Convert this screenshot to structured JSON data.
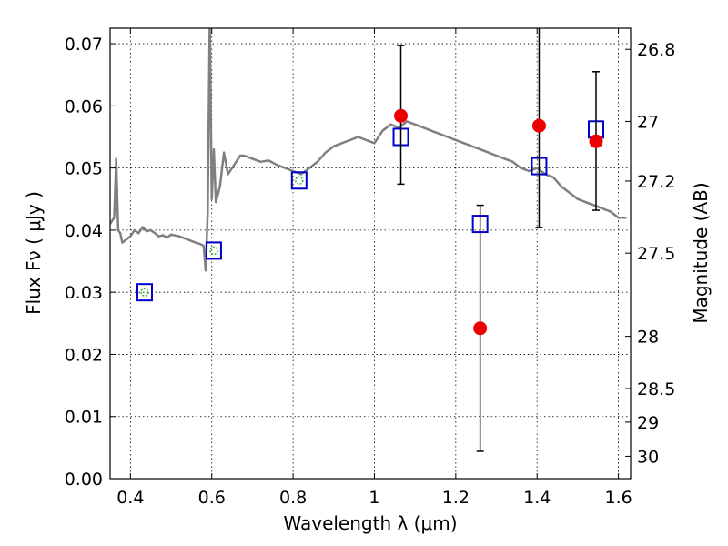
{
  "chart_data": {
    "type": "scatter",
    "title": "",
    "xlabel": "Wavelength  λ (μm)",
    "ylabel": "Flux  Fν  ( μJy )",
    "y2label": "Magnitude (AB)",
    "xlim": [
      0.35,
      1.63
    ],
    "ylim": [
      0.0,
      0.0725
    ],
    "grid": true,
    "x_ticks": [
      0.4,
      0.6,
      0.8,
      1.0,
      1.2,
      1.4,
      1.6
    ],
    "x_tick_labels": [
      "0.4",
      "0.6",
      "0.8",
      "1",
      "1.2",
      "1.4",
      "1.6"
    ],
    "y_ticks": [
      0.0,
      0.01,
      0.02,
      0.03,
      0.04,
      0.05,
      0.06,
      0.07
    ],
    "y_tick_labels": [
      "0.00",
      "0.01",
      "0.02",
      "0.03",
      "0.04",
      "0.05",
      "0.06",
      "0.07"
    ],
    "y2_ticks": [
      {
        "flux": 0.0691,
        "label": "26.8"
      },
      {
        "flux": 0.0575,
        "label": "27"
      },
      {
        "flux": 0.0479,
        "label": "27.2"
      },
      {
        "flux": 0.0363,
        "label": "27.5"
      },
      {
        "flux": 0.0229,
        "label": "28"
      },
      {
        "flux": 0.0145,
        "label": "28.5"
      },
      {
        "flux": 0.0091,
        "label": "29"
      },
      {
        "flux": 0.0036,
        "label": "30"
      }
    ],
    "series": [
      {
        "kind": "line",
        "color": "#808080",
        "x": [
          0.35,
          0.36,
          0.365,
          0.37,
          0.375,
          0.38,
          0.39,
          0.4,
          0.41,
          0.42,
          0.43,
          0.44,
          0.45,
          0.46,
          0.47,
          0.48,
          0.49,
          0.5,
          0.52,
          0.54,
          0.56,
          0.57,
          0.58,
          0.585,
          0.59,
          0.595,
          0.6,
          0.605,
          0.61,
          0.62,
          0.63,
          0.64,
          0.65,
          0.66,
          0.67,
          0.68,
          0.7,
          0.72,
          0.74,
          0.76,
          0.78,
          0.8,
          0.82,
          0.84,
          0.86,
          0.88,
          0.9,
          0.92,
          0.94,
          0.96,
          0.98,
          1.0,
          1.02,
          1.04,
          1.06,
          1.08,
          1.1,
          1.12,
          1.14,
          1.16,
          1.18,
          1.2,
          1.22,
          1.24,
          1.26,
          1.28,
          1.3,
          1.32,
          1.34,
          1.36,
          1.38,
          1.4,
          1.42,
          1.44,
          1.46,
          1.48,
          1.5,
          1.52,
          1.54,
          1.56,
          1.58,
          1.6,
          1.62
        ],
        "y": [
          0.041,
          0.042,
          0.0515,
          0.04,
          0.0395,
          0.038,
          0.0385,
          0.039,
          0.04,
          0.0395,
          0.0405,
          0.0398,
          0.04,
          0.0395,
          0.039,
          0.0392,
          0.0388,
          0.0393,
          0.039,
          0.0385,
          0.038,
          0.0378,
          0.0375,
          0.0335,
          0.043,
          0.074,
          0.045,
          0.053,
          0.0445,
          0.047,
          0.0525,
          0.049,
          0.05,
          0.051,
          0.052,
          0.052,
          0.0515,
          0.051,
          0.0512,
          0.0505,
          0.05,
          0.0495,
          0.049,
          0.05,
          0.051,
          0.0525,
          0.0535,
          0.054,
          0.0545,
          0.055,
          0.0545,
          0.054,
          0.056,
          0.057,
          0.0565,
          0.0575,
          0.057,
          0.0565,
          0.056,
          0.0555,
          0.055,
          0.0545,
          0.054,
          0.0535,
          0.053,
          0.0525,
          0.052,
          0.0515,
          0.051,
          0.05,
          0.0495,
          0.05,
          0.049,
          0.0485,
          0.047,
          0.046,
          0.045,
          0.0445,
          0.044,
          0.0435,
          0.043,
          0.042,
          0.042
        ]
      },
      {
        "kind": "points",
        "marker": "square-open",
        "color": "#0000cc",
        "x": [
          0.435,
          0.605,
          0.815,
          1.065,
          1.26,
          1.405,
          1.545
        ],
        "y": [
          0.03,
          0.0367,
          0.048,
          0.055,
          0.041,
          0.0503,
          0.0562
        ]
      },
      {
        "kind": "points",
        "marker": "dot",
        "color": "#22aa22",
        "x": [
          0.435,
          0.605,
          0.815
        ],
        "y": [
          0.03,
          0.0367,
          0.048
        ]
      },
      {
        "kind": "errorbar",
        "marker": "circle-filled",
        "color": "#ee0000",
        "x": [
          1.065,
          1.26,
          1.405,
          1.545
        ],
        "y": [
          0.0584,
          0.0242,
          0.0568,
          0.0543
        ],
        "y_low": [
          0.0474,
          0.0044,
          0.0404,
          0.0432
        ],
        "y_high": [
          0.0697,
          0.044,
          0.074,
          0.0655
        ]
      }
    ]
  }
}
